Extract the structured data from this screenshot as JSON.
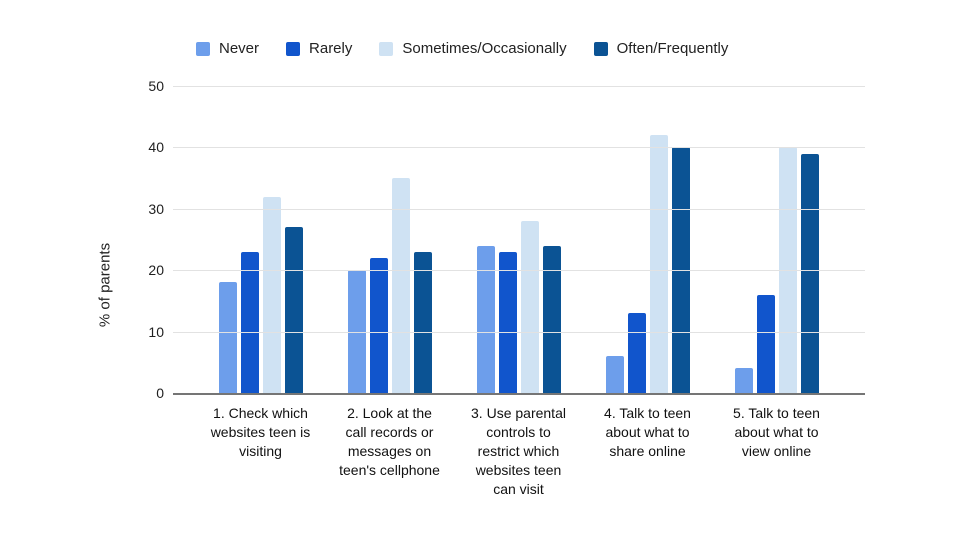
{
  "chart_data": {
    "type": "bar",
    "title": "",
    "xlabel": "",
    "ylabel": "% of parents",
    "ylim": [
      0,
      50
    ],
    "yticks": [
      0,
      10,
      20,
      30,
      40,
      50
    ],
    "grid": true,
    "legend_position": "top",
    "background_color": "#ffffff",
    "gridline_color": "#e2e2e2",
    "baseline_color": "#757575",
    "categories": [
      "1. Check which\nwebsites teen is\nvisiting",
      "2. Look at the\ncall records or\nmessages on\nteen's cellphone",
      "3. Use parental\ncontrols to\nrestrict which\nwebsites teen\ncan visit",
      "4. Talk to teen\nabout what to\nshare online",
      "5. Talk to teen\nabout what to\nview online"
    ],
    "series": [
      {
        "name": "Never",
        "color": "#6d9eeb",
        "values": [
          18,
          20,
          24,
          6,
          4
        ]
      },
      {
        "name": "Rarely",
        "color": "#1155cc",
        "values": [
          23,
          22,
          23,
          13,
          16
        ]
      },
      {
        "name": "Sometimes/Occasionally",
        "color": "#cfe2f3",
        "values": [
          32,
          35,
          28,
          42,
          40
        ]
      },
      {
        "name": "Often/Frequently",
        "color": "#0b5394",
        "values": [
          27,
          23,
          24,
          40,
          39
        ]
      }
    ]
  }
}
